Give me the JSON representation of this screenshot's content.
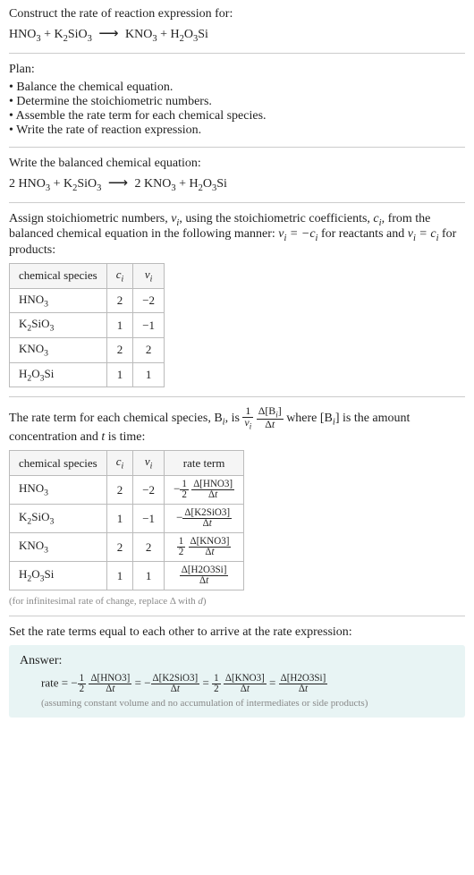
{
  "construct_title": "Construct the rate of reaction expression for:",
  "unbalanced_eq_parts": [
    "HNO",
    "3",
    " + K",
    "2",
    "SiO",
    "3",
    "  ⟶  KNO",
    "3",
    " + H",
    "2",
    "O",
    "3",
    "Si"
  ],
  "plan_label": "Plan:",
  "plan_items": [
    "Balance the chemical equation.",
    "Determine the stoichiometric numbers.",
    "Assemble the rate term for each chemical species.",
    "Write the rate of reaction expression."
  ],
  "balanced_title": "Write the balanced chemical equation:",
  "balanced_eq_parts": [
    "2 HNO",
    "3",
    " + K",
    "2",
    "SiO",
    "3",
    "  ⟶  2 KNO",
    "3",
    " + H",
    "2",
    "O",
    "3",
    "Si"
  ],
  "stoich_intro_a": "Assign stoichiometric numbers, ",
  "stoich_intro_b": ", using the stoichiometric coefficients, ",
  "stoich_intro_c": ", from the balanced chemical equation in the following manner: ",
  "stoich_intro_d": " for reactants and ",
  "stoich_intro_e": " for products:",
  "nu_i": "ν",
  "c_i": "c",
  "eq1_lhs": "ν",
  "eq1_rhs": " = −c",
  "eq2_lhs": "ν",
  "eq2_rhs": " = c",
  "table1": {
    "headers": [
      "chemical species",
      "cᵢ",
      "νᵢ"
    ],
    "rows": [
      [
        "HNO₃",
        "2",
        "−2"
      ],
      [
        "K₂SiO₃",
        "1",
        "−1"
      ],
      [
        "KNO₃",
        "2",
        "2"
      ],
      [
        "H₂O₃Si",
        "1",
        "1"
      ]
    ]
  },
  "rate_term_intro_a": "The rate term for each chemical species, B",
  "rate_term_intro_b": ", is ",
  "rate_term_intro_c": " where [B",
  "rate_term_intro_d": "] is the amount concentration and ",
  "rate_term_intro_e": " is time:",
  "t_label": "t",
  "table2": {
    "headers": [
      "chemical species",
      "cᵢ",
      "νᵢ",
      "rate term"
    ],
    "rows": [
      {
        "sp": "HNO₃",
        "c": "2",
        "nu": "−2",
        "coef_num": "1",
        "coef_den": "2",
        "sign": "−",
        "delta": "Δ[HNO3]",
        "dt": "Δt"
      },
      {
        "sp": "K₂SiO₃",
        "c": "1",
        "nu": "−1",
        "coef_num": "",
        "coef_den": "",
        "sign": "−",
        "delta": "Δ[K2SiO3]",
        "dt": "Δt"
      },
      {
        "sp": "KNO₃",
        "c": "2",
        "nu": "2",
        "coef_num": "1",
        "coef_den": "2",
        "sign": "",
        "delta": "Δ[KNO3]",
        "dt": "Δt"
      },
      {
        "sp": "H₂O₃Si",
        "c": "1",
        "nu": "1",
        "coef_num": "",
        "coef_den": "",
        "sign": "",
        "delta": "Δ[H2O3Si]",
        "dt": "Δt"
      }
    ]
  },
  "inf_note": "(for infinitesimal rate of change, replace Δ with d)",
  "set_equal": "Set the rate terms equal to each other to arrive at the rate expression:",
  "answer_label": "Answer:",
  "rate_prefix": "rate = ",
  "rate_terms": [
    {
      "sign": "−",
      "coef_num": "1",
      "coef_den": "2",
      "delta": "Δ[HNO3]",
      "dt": "Δt"
    },
    {
      "sign": "−",
      "coef_num": "",
      "coef_den": "",
      "delta": "Δ[K2SiO3]",
      "dt": "Δt"
    },
    {
      "sign": "",
      "coef_num": "1",
      "coef_den": "2",
      "delta": "Δ[KNO3]",
      "dt": "Δt"
    },
    {
      "sign": "",
      "coef_num": "",
      "coef_den": "",
      "delta": "Δ[H2O3Si]",
      "dt": "Δt"
    }
  ],
  "assume_note": "(assuming constant volume and no accumulation of intermediates or side products)",
  "frac_main": {
    "num1": "1",
    "den1": "ν",
    "num2": "Δ[B",
    "den2": "Δt"
  },
  "i_sub": "i"
}
